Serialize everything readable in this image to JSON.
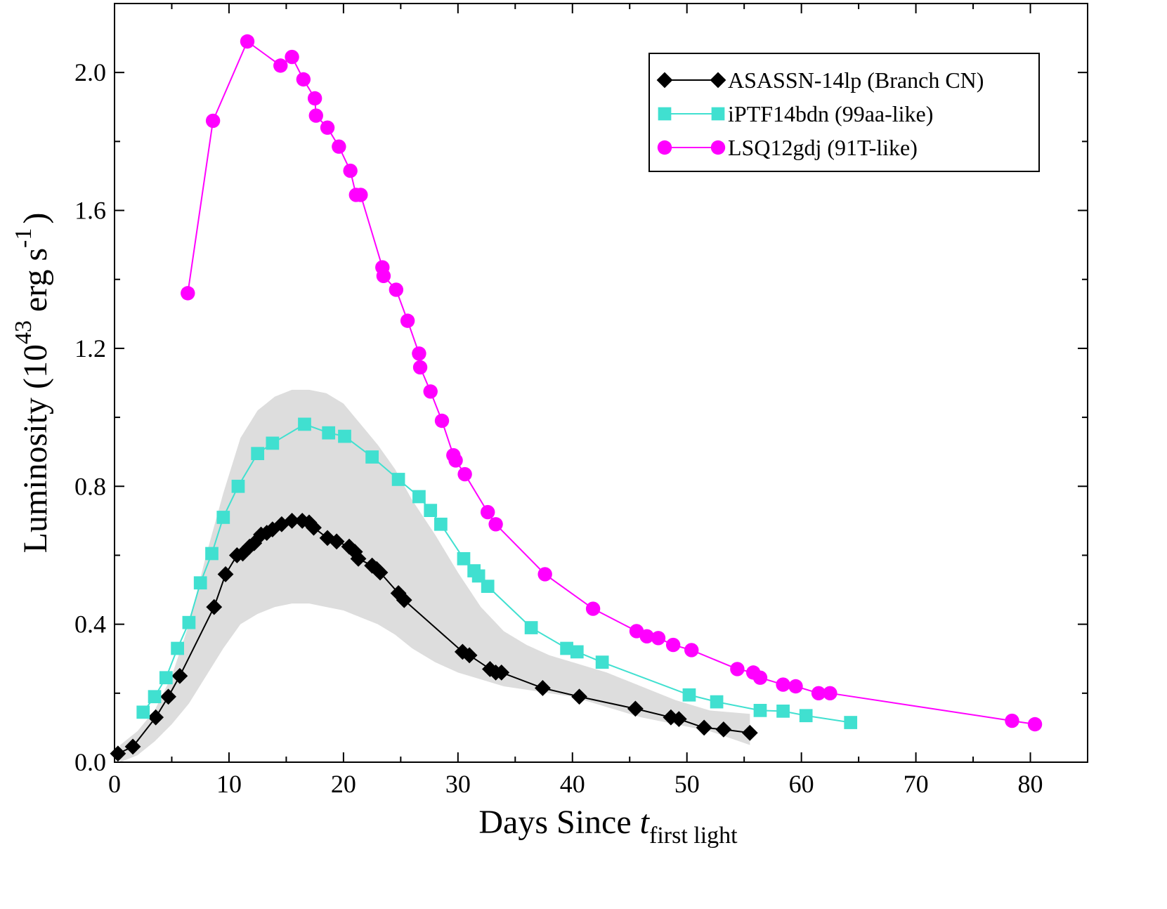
{
  "chart_data": {
    "type": "line",
    "xlabel": {
      "main": "Days Since ",
      "italic": "t",
      "sub": "first light"
    },
    "ylabel": {
      "main": "Luminosity (10",
      "sup": "43",
      "mid": " erg s",
      "sup2": "-1",
      "end": ")"
    },
    "xlim": [
      0,
      85
    ],
    "ylim": [
      0,
      2.2
    ],
    "xticks": [
      0,
      10,
      20,
      30,
      40,
      50,
      60,
      70,
      80
    ],
    "xtick_labels": [
      "0",
      "10",
      "20",
      "30",
      "40",
      "50",
      "60",
      "70",
      "80"
    ],
    "yticks": [
      0,
      0.4,
      0.8,
      1.2,
      1.6,
      2.0
    ],
    "ytick_labels": [
      "0.0",
      "0.4",
      "0.8",
      "1.2",
      "1.6",
      "2.0"
    ],
    "legend_position": "top-right",
    "band": {
      "name": "range",
      "color": "#dddddd",
      "x": [
        0.5,
        2,
        3.5,
        5,
        6.5,
        8,
        9.5,
        11,
        12.5,
        14,
        15.5,
        17,
        18.5,
        20,
        21.5,
        23,
        24.5,
        26,
        28,
        30,
        32,
        34,
        36,
        38,
        40,
        43,
        46,
        49,
        52,
        55.5
      ],
      "lower": [
        0.0,
        0.02,
        0.06,
        0.11,
        0.17,
        0.25,
        0.33,
        0.4,
        0.43,
        0.45,
        0.46,
        0.46,
        0.45,
        0.44,
        0.42,
        0.4,
        0.37,
        0.33,
        0.29,
        0.26,
        0.24,
        0.22,
        0.21,
        0.2,
        0.19,
        0.16,
        0.13,
        0.11,
        0.09,
        0.05
      ],
      "upper": [
        0.05,
        0.09,
        0.15,
        0.25,
        0.4,
        0.6,
        0.78,
        0.94,
        1.02,
        1.06,
        1.08,
        1.08,
        1.07,
        1.04,
        0.98,
        0.92,
        0.85,
        0.76,
        0.66,
        0.55,
        0.45,
        0.38,
        0.34,
        0.31,
        0.29,
        0.26,
        0.22,
        0.18,
        0.15,
        0.14
      ]
    },
    "series": [
      {
        "name": "ASASSN-14lp (Branch CN)",
        "color": "#000000",
        "marker": "diamond",
        "x": [
          0.3,
          1.6,
          3.6,
          4.7,
          5.7,
          8.7,
          9.7,
          10.7,
          11.2,
          11.8,
          12.2,
          12.8,
          13.3,
          13.8,
          14.6,
          15.5,
          16.4,
          17.0,
          17.4,
          18.6,
          19.4,
          20.5,
          21.0,
          21.3,
          22.5,
          22.9,
          23.2,
          24.8,
          25.3,
          30.4,
          31.0,
          32.8,
          33.3,
          33.8,
          37.4,
          40.6,
          45.5,
          48.6,
          49.3,
          51.5,
          53.2,
          55.5
        ],
        "y": [
          0.025,
          0.045,
          0.13,
          0.19,
          0.25,
          0.45,
          0.545,
          0.6,
          0.605,
          0.625,
          0.635,
          0.66,
          0.665,
          0.675,
          0.69,
          0.7,
          0.7,
          0.695,
          0.68,
          0.65,
          0.64,
          0.625,
          0.61,
          0.59,
          0.57,
          0.56,
          0.55,
          0.49,
          0.47,
          0.32,
          0.31,
          0.27,
          0.26,
          0.26,
          0.215,
          0.19,
          0.155,
          0.13,
          0.125,
          0.1,
          0.095,
          0.085
        ]
      },
      {
        "name": "iPTF14bdn (99aa-like)",
        "color": "#40e0d0",
        "marker": "square",
        "x": [
          2.5,
          3.5,
          4.5,
          5.5,
          6.5,
          7.5,
          8.5,
          9.5,
          10.8,
          12.5,
          13.8,
          16.6,
          18.7,
          20.1,
          22.5,
          24.8,
          26.6,
          27.6,
          28.5,
          30.5,
          31.4,
          31.8,
          32.6,
          36.4,
          39.5,
          40.4,
          42.6,
          50.2,
          52.6,
          56.4,
          58.4,
          60.4,
          64.3
        ],
        "y": [
          0.145,
          0.19,
          0.245,
          0.33,
          0.405,
          0.52,
          0.605,
          0.71,
          0.8,
          0.895,
          0.925,
          0.98,
          0.955,
          0.945,
          0.885,
          0.82,
          0.77,
          0.73,
          0.69,
          0.59,
          0.555,
          0.54,
          0.51,
          0.39,
          0.33,
          0.32,
          0.29,
          0.195,
          0.175,
          0.15,
          0.148,
          0.135,
          0.115
        ]
      },
      {
        "name": "LSQ12gdj (91T-like)",
        "color": "#ff00ff",
        "marker": "circle",
        "x": [
          6.4,
          8.6,
          11.6,
          14.5,
          15.5,
          16.5,
          17.5,
          17.6,
          18.6,
          19.6,
          20.6,
          21.1,
          21.5,
          23.4,
          23.5,
          24.6,
          25.6,
          26.6,
          26.7,
          27.6,
          28.6,
          29.6,
          29.8,
          30.6,
          32.6,
          33.3,
          37.6,
          41.8,
          45.6,
          46.5,
          47.5,
          48.8,
          50.4,
          54.4,
          55.8,
          56.4,
          58.4,
          59.5,
          61.5,
          62.5,
          78.4,
          80.4
        ],
        "y": [
          1.36,
          1.86,
          2.09,
          2.02,
          2.045,
          1.98,
          1.925,
          1.875,
          1.84,
          1.785,
          1.715,
          1.645,
          1.645,
          1.435,
          1.41,
          1.37,
          1.28,
          1.185,
          1.145,
          1.075,
          0.99,
          0.89,
          0.875,
          0.835,
          0.725,
          0.69,
          0.545,
          0.445,
          0.38,
          0.365,
          0.36,
          0.34,
          0.325,
          0.27,
          0.26,
          0.245,
          0.225,
          0.22,
          0.2,
          0.2,
          0.12,
          0.11
        ]
      }
    ]
  }
}
